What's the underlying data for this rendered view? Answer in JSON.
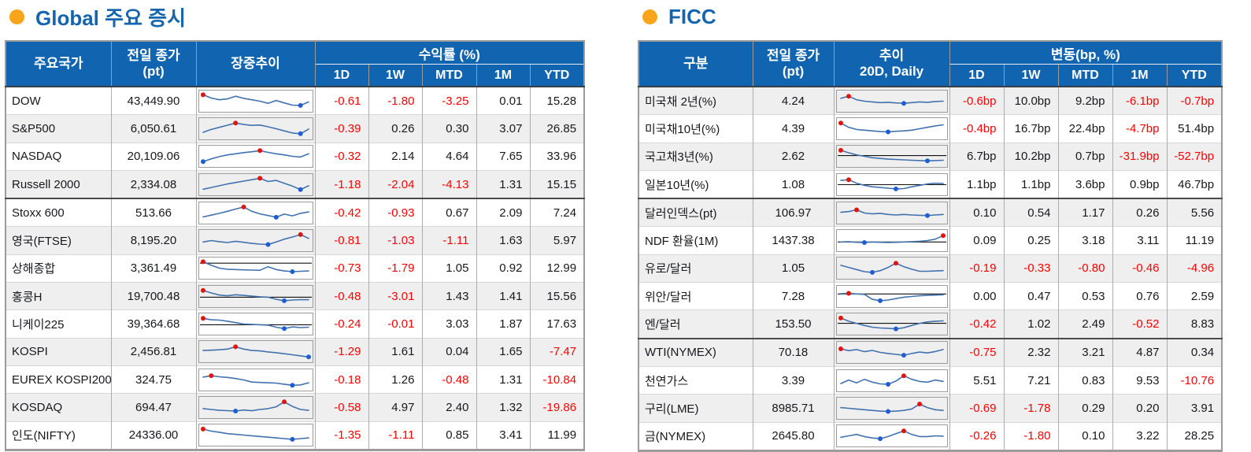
{
  "colors": {
    "header_bg": "#1164AF",
    "title_blue": "#1565AE",
    "bullet_orange": "#F9A51B",
    "negative_red": "#FF0000",
    "value_text": "#17181C",
    "stripe_gray": "#EFEFEF",
    "spark_line": "#4272AE",
    "spark_max_dot": "#E3140E",
    "spark_min_dot": "#1E5ED2"
  },
  "left": {
    "title": "Global 주요 증시",
    "headers": {
      "name": "주요국가",
      "close_l1": "전일 종가",
      "close_l2": "(pt)",
      "trend_l1": "장중추이",
      "trend_l2": "",
      "group": "수익률 (%)",
      "periods": [
        "1D",
        "1W",
        "MTD",
        "1M",
        "YTD"
      ]
    },
    "groups": [
      {
        "rows": [
          {
            "name": "DOW",
            "close": "43,449.90",
            "values": [
              "-0.61",
              "-1.80",
              "-3.25",
              "0.01",
              "15.28"
            ],
            "spark": {
              "pts": [
                95,
                72,
                60,
                66,
                85,
                70,
                60,
                50,
                35,
                55,
                38,
                22,
                20,
                45
              ],
              "base": null
            }
          },
          {
            "name": "S&P500",
            "close": "6,050.61",
            "values": [
              "-0.39",
              "0.26",
              "0.30",
              "3.07",
              "26.85"
            ],
            "spark": {
              "pts": [
                25,
                45,
                60,
                75,
                90,
                80,
                74,
                76,
                64,
                50,
                35,
                20,
                15,
                48
              ],
              "base": null
            }
          },
          {
            "name": "NASDAQ",
            "close": "20,109.06",
            "values": [
              "-0.32",
              "2.14",
              "4.64",
              "7.65",
              "33.96"
            ],
            "spark": {
              "pts": [
                12,
                32,
                48,
                60,
                68,
                76,
                82,
                90,
                78,
                68,
                60,
                50,
                45,
                68
              ],
              "base": null
            }
          },
          {
            "name": "Russell 2000",
            "close": "2,334.08",
            "values": [
              "-1.18",
              "-2.04",
              "-4.13",
              "1.31",
              "15.15"
            ],
            "spark": {
              "pts": [
                18,
                30,
                42,
                55,
                65,
                75,
                85,
                95,
                72,
                80,
                60,
                40,
                15,
                42
              ],
              "base": null
            }
          }
        ]
      },
      {
        "rows": [
          {
            "name": "Stoxx 600",
            "close": "513.66",
            "values": [
              "-0.42",
              "-0.93",
              "0.67",
              "2.09",
              "7.24"
            ],
            "spark": {
              "pts": [
                22,
                35,
                48,
                62,
                78,
                92,
                62,
                44,
                32,
                20,
                42,
                30,
                48,
                58
              ],
              "base": null
            }
          },
          {
            "name": "영국(FTSE)",
            "close": "8,195.20",
            "values": [
              "-0.81",
              "-1.03",
              "-1.11",
              "1.63",
              "5.97"
            ],
            "spark": {
              "pts": [
                40,
                50,
                42,
                36,
                45,
                38,
                30,
                25,
                22,
                40,
                60,
                75,
                92,
                65
              ],
              "base": null
            }
          },
          {
            "name": "상해종합",
            "close": "3,361.49",
            "values": [
              "-0.73",
              "-1.79",
              "1.05",
              "0.92",
              "12.99"
            ],
            "spark": {
              "pts": [
                95,
                70,
                50,
                42,
                40,
                38,
                36,
                35,
                60,
                40,
                30,
                25,
                28,
                30
              ],
              "base": 85
            }
          },
          {
            "name": "홍콩H",
            "close": "19,700.48",
            "values": [
              "-0.48",
              "-3.01",
              "1.43",
              "1.41",
              "15.56"
            ],
            "spark": {
              "pts": [
                92,
                75,
                60,
                55,
                62,
                58,
                52,
                48,
                45,
                30,
                20,
                25,
                28,
                27
              ],
              "base": 45
            }
          },
          {
            "name": "니케이225",
            "close": "39,364.68",
            "values": [
              "-0.24",
              "-0.01",
              "3.03",
              "1.87",
              "17.63"
            ],
            "spark": {
              "pts": [
                90,
                80,
                78,
                70,
                60,
                50,
                48,
                45,
                42,
                28,
                18,
                30,
                25,
                28
              ],
              "base": 45
            }
          },
          {
            "name": "KOSPI",
            "close": "2,456.81",
            "values": [
              "-1.29",
              "1.61",
              "0.04",
              "1.65",
              "-7.47"
            ],
            "spark": {
              "pts": [
                58,
                60,
                63,
                68,
                84,
                68,
                58,
                55,
                48,
                42,
                35,
                28,
                20,
                12
              ],
              "base": null
            }
          },
          {
            "name": "EUREX KOSPI200",
            "close": "324.75",
            "values": [
              "-0.18",
              "1.26",
              "-0.48",
              "1.31",
              "-10.84"
            ],
            "spark": {
              "pts": [
                70,
                80,
                72,
                68,
                60,
                50,
                35,
                32,
                30,
                28,
                20,
                12,
                15,
                30
              ],
              "base": null
            }
          },
          {
            "name": "KOSDAQ",
            "close": "694.47",
            "values": [
              "-0.58",
              "4.97",
              "2.40",
              "1.32",
              "-19.86"
            ],
            "spark": {
              "pts": [
                42,
                36,
                30,
                28,
                25,
                32,
                27,
                36,
                42,
                55,
                90,
                58,
                36,
                30
              ],
              "base": null
            }
          },
          {
            "name": "인도(NIFTY)",
            "close": "24336.00",
            "values": [
              "-1.35",
              "-1.11",
              "0.85",
              "3.41",
              "11.99"
            ],
            "spark": {
              "pts": [
                92,
                78,
                70,
                60,
                55,
                50,
                45,
                40,
                35,
                30,
                25,
                20,
                25,
                30
              ],
              "base": null
            }
          }
        ]
      }
    ]
  },
  "right": {
    "title": "FICC",
    "headers": {
      "name": "구분",
      "close_l1": "전일 종가",
      "close_l2": "(pt)",
      "trend_l1": "추이",
      "trend_l2": "20D, Daily",
      "group": "변동(bp, %)",
      "periods": [
        "1D",
        "1W",
        "MTD",
        "1M",
        "YTD"
      ]
    },
    "groups": [
      {
        "rows": [
          {
            "name": "미국채 2년(%)",
            "close": "4.24",
            "values": [
              "-0.6bp",
              "10.0bp",
              "9.2bp",
              "-6.1bp",
              "-0.7bp"
            ],
            "spark": {
              "pts": [
                70,
                85,
                60,
                50,
                45,
                40,
                42,
                38,
                35,
                40,
                45,
                42,
                48,
                50
              ],
              "base": null
            }
          },
          {
            "name": "미국채10년(%)",
            "close": "4.39",
            "values": [
              "-0.4bp",
              "16.7bp",
              "22.4bp",
              "-4.7bp",
              "51.4bp"
            ],
            "spark": {
              "pts": [
                90,
                60,
                45,
                40,
                35,
                30,
                28,
                32,
                35,
                40,
                50,
                60,
                70,
                78
              ],
              "base": null
            }
          },
          {
            "name": "국고채3년(%)",
            "close": "2.62",
            "values": [
              "6.7bp",
              "10.2bp",
              "0.7bp",
              "-31.9bp",
              "-52.7bp"
            ],
            "spark": {
              "pts": [
                92,
                75,
                60,
                50,
                40,
                35,
                30,
                28,
                25,
                22,
                20,
                18,
                20,
                22
              ],
              "base": 55
            }
          },
          {
            "name": "일본10년(%)",
            "close": "1.08",
            "values": [
              "1.1bp",
              "1.1bp",
              "3.6bp",
              "0.9bp",
              "46.7bp"
            ],
            "spark": {
              "pts": [
                80,
                85,
                60,
                45,
                35,
                30,
                25,
                20,
                22,
                35,
                45,
                55,
                60,
                58
              ],
              "base": 50
            }
          }
        ]
      },
      {
        "rows": [
          {
            "name": "달러인덱스(pt)",
            "close": "106.97",
            "values": [
              "0.10",
              "0.54",
              "1.17",
              "0.26",
              "5.56"
            ],
            "spark": {
              "pts": [
                55,
                60,
                72,
                50,
                44,
                48,
                40,
                36,
                40,
                36,
                34,
                32,
                36,
                40
              ],
              "base": null
            }
          },
          {
            "name": "NDF 환율(1M)",
            "close": "1437.38",
            "values": [
              "0.09",
              "0.25",
              "3.18",
              "3.11",
              "11.19"
            ],
            "spark": {
              "pts": [
                40,
                42,
                38,
                36,
                40,
                38,
                36,
                38,
                40,
                42,
                45,
                50,
                60,
                85
              ],
              "base": 40
            }
          },
          {
            "name": "유로/달러",
            "close": "1.05",
            "values": [
              "-0.19",
              "-0.33",
              "-0.80",
              "-0.46",
              "-4.96"
            ],
            "spark": {
              "pts": [
                70,
                55,
                40,
                25,
                20,
                32,
                55,
                85,
                60,
                42,
                28,
                28,
                30,
                32
              ],
              "base": null
            }
          },
          {
            "name": "위안/달러",
            "close": "7.28",
            "values": [
              "0.00",
              "0.47",
              "0.53",
              "0.76",
              "2.59"
            ],
            "spark": {
              "pts": [
                70,
                72,
                68,
                65,
                30,
                20,
                25,
                35,
                45,
                50,
                55,
                58,
                60,
                62
              ],
              "base": 68
            }
          },
          {
            "name": "엔/달러",
            "close": "153.50",
            "values": [
              "-0.42",
              "1.02",
              "2.49",
              "-0.52",
              "8.83"
            ],
            "spark": {
              "pts": [
                92,
                70,
                55,
                40,
                28,
                22,
                20,
                16,
                24,
                40,
                55,
                65,
                70,
                72
              ],
              "base": 55
            }
          }
        ]
      },
      {
        "rows": [
          {
            "name": "WTI(NYMEX)",
            "close": "70.18",
            "values": [
              "-0.75",
              "2.32",
              "3.21",
              "4.87",
              "0.34"
            ],
            "spark": {
              "pts": [
                75,
                62,
                70,
                55,
                64,
                50,
                42,
                36,
                30,
                42,
                52,
                46,
                56,
                70
              ],
              "base": null
            }
          },
          {
            "name": "천연가스",
            "close": "3.39",
            "values": [
              "5.51",
              "7.21",
              "0.83",
              "9.53",
              "-10.76"
            ],
            "spark": {
              "pts": [
                30,
                55,
                35,
                60,
                40,
                28,
                25,
                48,
                85,
                60,
                45,
                40,
                55,
                45
              ],
              "base": null
            }
          },
          {
            "name": "구리(LME)",
            "close": "8985.71",
            "values": [
              "-0.69",
              "-1.78",
              "0.29",
              "0.20",
              "3.91"
            ],
            "spark": {
              "pts": [
                55,
                50,
                45,
                40,
                35,
                30,
                28,
                30,
                35,
                45,
                80,
                55,
                40,
                35
              ],
              "base": null
            }
          },
          {
            "name": "금(NYMEX)",
            "close": "2645.80",
            "values": [
              "-0.26",
              "-1.80",
              "0.10",
              "3.22",
              "28.25"
            ],
            "spark": {
              "pts": [
                40,
                50,
                60,
                45,
                35,
                30,
                45,
                65,
                85,
                60,
                45,
                45,
                50,
                48
              ],
              "base": null
            }
          }
        ]
      }
    ]
  }
}
